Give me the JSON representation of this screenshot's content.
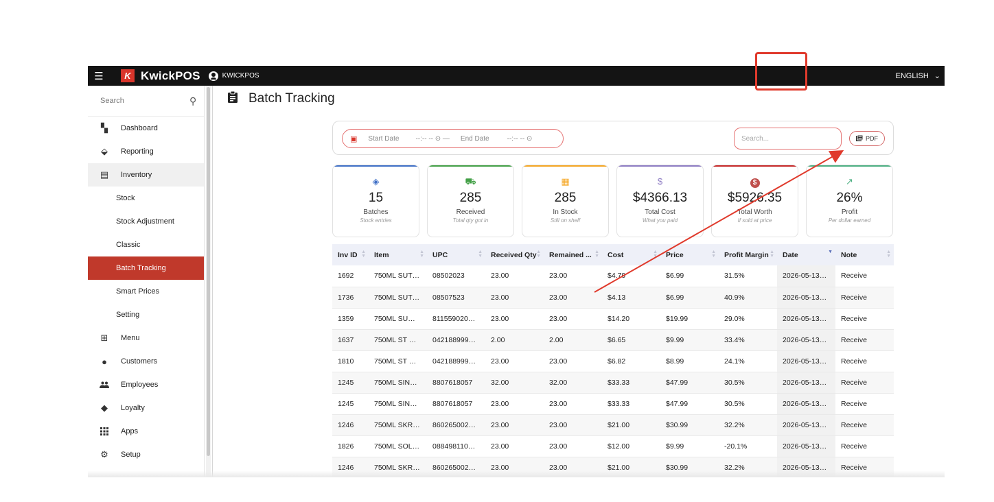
{
  "topbar": {
    "menu_icon": "hamburger-icon",
    "logo_letter": "K",
    "brand": "KwickPOS",
    "account_name": "KWICKPOS",
    "language": "ENGLISH",
    "language_chevron": "⌄"
  },
  "sidebar": {
    "search_placeholder": "Search",
    "items": [
      {
        "label": "Dashboard",
        "icon": "dashboard-icon",
        "glyph": "▚"
      },
      {
        "label": "Reporting",
        "icon": "reporting-icon",
        "glyph": "⬙"
      },
      {
        "label": "Inventory",
        "icon": "clipboard-icon",
        "glyph": "▤"
      },
      {
        "label": "Stock"
      },
      {
        "label": "Stock Adjustment"
      },
      {
        "label": "Classic"
      },
      {
        "label": "Batch Tracking"
      },
      {
        "label": "Smart Prices"
      },
      {
        "label": "Setting"
      },
      {
        "label": "Menu",
        "icon": "grid-icon",
        "glyph": "⊞"
      },
      {
        "label": "Customers",
        "icon": "person-circle-icon",
        "glyph": "●"
      },
      {
        "label": "Employees",
        "icon": "people-icon",
        "glyph": "👥"
      },
      {
        "label": "Loyalty",
        "icon": "tags-icon",
        "glyph": "◆"
      },
      {
        "label": "Apps",
        "icon": "apps-icon",
        "glyph": "⋮⋮"
      },
      {
        "label": "Setup",
        "icon": "gear-icon",
        "glyph": "⚙"
      }
    ]
  },
  "page": {
    "title": "Batch Tracking"
  },
  "filters": {
    "start_label": "Start Date",
    "start_value": "--:-- -- ⊙ —",
    "end_label": "End Date",
    "end_value": "--:-- -- ⊙",
    "search_placeholder": "Search...",
    "pdf_label": "PDF"
  },
  "cards": [
    {
      "value": "15",
      "label": "Batches",
      "sub": "Stock entries",
      "icon": "layers-icon",
      "glyph": "◈",
      "color": "#3f6fc6"
    },
    {
      "value": "285",
      "label": "Received",
      "sub": "Total qty got in",
      "icon": "truck-icon",
      "glyph": "⛟",
      "color": "#43a047"
    },
    {
      "value": "285",
      "label": "In Stock",
      "sub": "Still on shelf",
      "icon": "store-icon",
      "glyph": "▦",
      "color": "#f5a623"
    },
    {
      "value": "$4366.13",
      "label": "Total Cost",
      "sub": "What you paid",
      "icon": "dollar-icon",
      "glyph": "$",
      "color": "#8e7cc3"
    },
    {
      "value": "$5926.35",
      "label": "Total Worth",
      "sub": "If sold at price",
      "icon": "dollar-circle-icon",
      "glyph": "$",
      "color": "#c62828"
    },
    {
      "value": "26%",
      "label": "Profit",
      "sub": "Per dollar earned",
      "icon": "trend-icon",
      "glyph": "↗",
      "color": "#4caf82"
    }
  ],
  "table": {
    "columns": [
      "Inv ID",
      "Item",
      "UPC",
      "Received Qty",
      "Remained ...",
      "Cost",
      "Price",
      "Profit Margin",
      "Date",
      "Note"
    ],
    "rows": [
      [
        "1692",
        "750ML SUT…",
        "08502023",
        "23.00",
        "23.00",
        "$4.79",
        "$6.99",
        "31.5%",
        "2026-05-13…",
        "Receive"
      ],
      [
        "1736",
        "750ML SUT…",
        "08507523",
        "23.00",
        "23.00",
        "$4.13",
        "$6.99",
        "40.9%",
        "2026-05-13…",
        "Receive"
      ],
      [
        "1359",
        "750ML SU…",
        "811559020…",
        "23.00",
        "23.00",
        "$14.20",
        "$19.99",
        "29.0%",
        "2026-05-13…",
        "Receive"
      ],
      [
        "1637",
        "750ML ST …",
        "042188999…",
        "2.00",
        "2.00",
        "$6.65",
        "$9.99",
        "33.4%",
        "2026-05-13…",
        "Receive"
      ],
      [
        "1810",
        "750ML ST …",
        "042188999…",
        "23.00",
        "23.00",
        "$6.82",
        "$8.99",
        "24.1%",
        "2026-05-13…",
        "Receive"
      ],
      [
        "1245",
        "750ML SIN…",
        "8807618057",
        "32.00",
        "32.00",
        "$33.33",
        "$47.99",
        "30.5%",
        "2026-05-13…",
        "Receive"
      ],
      [
        "1245",
        "750ML SIN…",
        "8807618057",
        "23.00",
        "23.00",
        "$33.33",
        "$47.99",
        "30.5%",
        "2026-05-13…",
        "Receive"
      ],
      [
        "1246",
        "750ML SKR…",
        "860265002…",
        "23.00",
        "23.00",
        "$21.00",
        "$30.99",
        "32.2%",
        "2026-05-13…",
        "Receive"
      ],
      [
        "1826",
        "750ML SOL…",
        "088498110…",
        "23.00",
        "23.00",
        "$12.00",
        "$9.99",
        "-20.1%",
        "2026-05-13…",
        "Receive"
      ],
      [
        "1246",
        "750ML SKR…",
        "860265002…",
        "23.00",
        "23.00",
        "$21.00",
        "$30.99",
        "32.2%",
        "2026-05-13…",
        "Receive"
      ]
    ]
  },
  "annotation": {
    "color": "#e03a2c"
  }
}
